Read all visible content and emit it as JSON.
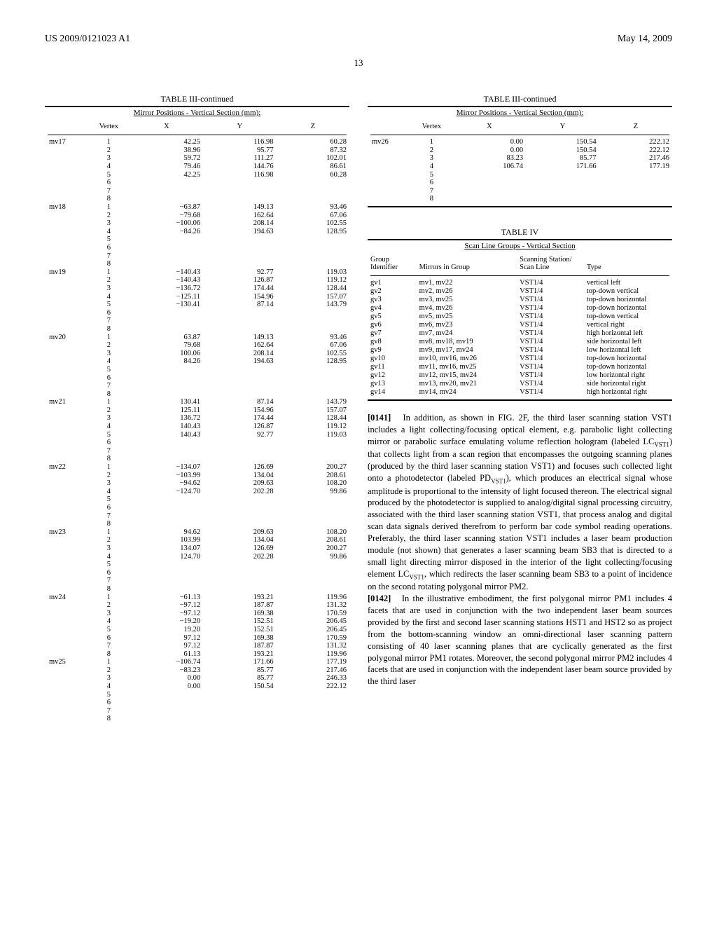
{
  "header": {
    "pub_no": "US 2009/0121023 A1",
    "date": "May 14, 2009"
  },
  "page_number": "13",
  "table3_left": {
    "title": "TABLE III-continued",
    "subtitle": "Mirror Positions - Vertical Section (mm):",
    "cols": [
      "Vertex",
      "X",
      "Y",
      "Z"
    ],
    "groups": [
      {
        "label": "mv17",
        "rows": [
          [
            "1",
            "42.25",
            "116.98",
            "60.28"
          ],
          [
            "2",
            "38.96",
            "95.77",
            "87.32"
          ],
          [
            "3",
            "59.72",
            "111.27",
            "102.01"
          ],
          [
            "4",
            "79.46",
            "144.76",
            "86.61"
          ],
          [
            "5",
            "42.25",
            "116.98",
            "60.28"
          ],
          [
            "6",
            "",
            "",
            ""
          ],
          [
            "7",
            "",
            "",
            ""
          ],
          [
            "8",
            "",
            "",
            ""
          ]
        ]
      },
      {
        "label": "mv18",
        "rows": [
          [
            "1",
            "−63.87",
            "149.13",
            "93.46"
          ],
          [
            "2",
            "−79.68",
            "162.64",
            "67.06"
          ],
          [
            "3",
            "−100.06",
            "208.14",
            "102.55"
          ],
          [
            "4",
            "−84.26",
            "194.63",
            "128.95"
          ],
          [
            "5",
            "",
            "",
            ""
          ],
          [
            "6",
            "",
            "",
            ""
          ],
          [
            "7",
            "",
            "",
            ""
          ],
          [
            "8",
            "",
            "",
            ""
          ]
        ]
      },
      {
        "label": "mv19",
        "rows": [
          [
            "1",
            "−140.43",
            "92.77",
            "119.03"
          ],
          [
            "2",
            "−140.43",
            "126.87",
            "119.12"
          ],
          [
            "3",
            "−136.72",
            "174.44",
            "128.44"
          ],
          [
            "4",
            "−125.11",
            "154.96",
            "157.07"
          ],
          [
            "5",
            "−130.41",
            "87.14",
            "143.79"
          ],
          [
            "6",
            "",
            "",
            ""
          ],
          [
            "7",
            "",
            "",
            ""
          ],
          [
            "8",
            "",
            "",
            ""
          ]
        ]
      },
      {
        "label": "mv20",
        "rows": [
          [
            "1",
            "63.87",
            "149.13",
            "93.46"
          ],
          [
            "2",
            "79.68",
            "162.64",
            "67.06"
          ],
          [
            "3",
            "100.06",
            "208.14",
            "102.55"
          ],
          [
            "4",
            "84.26",
            "194.63",
            "128.95"
          ],
          [
            "5",
            "",
            "",
            ""
          ],
          [
            "6",
            "",
            "",
            ""
          ],
          [
            "7",
            "",
            "",
            ""
          ],
          [
            "8",
            "",
            "",
            ""
          ]
        ]
      },
      {
        "label": "mv21",
        "rows": [
          [
            "1",
            "130.41",
            "87.14",
            "143.79"
          ],
          [
            "2",
            "125.11",
            "154.96",
            "157.07"
          ],
          [
            "3",
            "136.72",
            "174.44",
            "128.44"
          ],
          [
            "4",
            "140.43",
            "126.87",
            "119.12"
          ],
          [
            "5",
            "140.43",
            "92.77",
            "119.03"
          ],
          [
            "6",
            "",
            "",
            ""
          ],
          [
            "7",
            "",
            "",
            ""
          ],
          [
            "8",
            "",
            "",
            ""
          ]
        ]
      },
      {
        "label": "mv22",
        "rows": [
          [
            "1",
            "−134.07",
            "126.69",
            "200.27"
          ],
          [
            "2",
            "−103.99",
            "134.04",
            "208.61"
          ],
          [
            "3",
            "−94.62",
            "209.63",
            "108.20"
          ],
          [
            "4",
            "−124.70",
            "202.28",
            "99.86"
          ],
          [
            "5",
            "",
            "",
            ""
          ],
          [
            "6",
            "",
            "",
            ""
          ],
          [
            "7",
            "",
            "",
            ""
          ],
          [
            "8",
            "",
            "",
            ""
          ]
        ]
      },
      {
        "label": "mv23",
        "rows": [
          [
            "1",
            "94.62",
            "209.63",
            "108.20"
          ],
          [
            "2",
            "103.99",
            "134.04",
            "208.61"
          ],
          [
            "3",
            "134.07",
            "126.69",
            "200.27"
          ],
          [
            "4",
            "124.70",
            "202.28",
            "99.86"
          ],
          [
            "5",
            "",
            "",
            ""
          ],
          [
            "6",
            "",
            "",
            ""
          ],
          [
            "7",
            "",
            "",
            ""
          ],
          [
            "8",
            "",
            "",
            ""
          ]
        ]
      },
      {
        "label": "mv24",
        "rows": [
          [
            "1",
            "−61.13",
            "193.21",
            "119.96"
          ],
          [
            "2",
            "−97.12",
            "187.87",
            "131.32"
          ],
          [
            "3",
            "−97.12",
            "169.38",
            "170.59"
          ],
          [
            "4",
            "−19.20",
            "152.51",
            "206.45"
          ],
          [
            "5",
            "19.20",
            "152.51",
            "206.45"
          ],
          [
            "6",
            "97.12",
            "169.38",
            "170.59"
          ],
          [
            "7",
            "97.12",
            "187.87",
            "131.32"
          ],
          [
            "8",
            "61.13",
            "193.21",
            "119.96"
          ]
        ]
      },
      {
        "label": "mv25",
        "rows": [
          [
            "1",
            "−106.74",
            "171.66",
            "177.19"
          ],
          [
            "2",
            "−83.23",
            "85.77",
            "217.46"
          ],
          [
            "3",
            "0.00",
            "85.77",
            "246.33"
          ],
          [
            "4",
            "0.00",
            "150.54",
            "222.12"
          ],
          [
            "5",
            "",
            "",
            ""
          ],
          [
            "6",
            "",
            "",
            ""
          ],
          [
            "7",
            "",
            "",
            ""
          ],
          [
            "8",
            "",
            "",
            ""
          ]
        ]
      }
    ]
  },
  "table3_right": {
    "title": "TABLE III-continued",
    "subtitle": "Mirror Positions - Vertical Section (mm):",
    "cols": [
      "Vertex",
      "X",
      "Y",
      "Z"
    ],
    "groups": [
      {
        "label": "mv26",
        "rows": [
          [
            "1",
            "0.00",
            "150.54",
            "222.12"
          ],
          [
            "2",
            "0.00",
            "150.54",
            "222.12"
          ],
          [
            "3",
            "83.23",
            "85.77",
            "217.46"
          ],
          [
            "4",
            "106.74",
            "171.66",
            "177.19"
          ],
          [
            "5",
            "",
            "",
            ""
          ],
          [
            "6",
            "",
            "",
            ""
          ],
          [
            "7",
            "",
            "",
            ""
          ],
          [
            "8",
            "",
            "",
            ""
          ]
        ]
      }
    ]
  },
  "table4": {
    "title": "TABLE IV",
    "subtitle": "Scan Line Groups - Vertical Section",
    "cols": [
      "Group Identifier",
      "Mirrors in Group",
      "Scanning Station/ Scan Line",
      "Type"
    ],
    "rows": [
      [
        "gv1",
        "mv1, mv22",
        "VST1/4",
        "vertical left"
      ],
      [
        "gv2",
        "mv2, mv26",
        "VST1/4",
        "top-down vertical"
      ],
      [
        "gv3",
        "mv3, mv25",
        "VST1/4",
        "top-down horizontal"
      ],
      [
        "gv4",
        "mv4, mv26",
        "VST1/4",
        "top-down horizontal"
      ],
      [
        "gv5",
        "mv5, mv25",
        "VST1/4",
        "top-down vertical"
      ],
      [
        "gv6",
        "mv6, mv23",
        "VST1/4",
        "vertical right"
      ],
      [
        "gv7",
        "mv7, mv24",
        "VST1/4",
        "high horizontal left"
      ],
      [
        "gv8",
        "mv8, mv18, mv19",
        "VST1/4",
        "side horizontal left"
      ],
      [
        "gv9",
        "mv9, mv17, mv24",
        "VST1/4",
        "low horizontal left"
      ],
      [
        "gv10",
        "mv10, mv16, mv26",
        "VST1/4",
        "top-down horizontal"
      ],
      [
        "gv11",
        "mv11, mv16, mv25",
        "VST1/4",
        "top-down horizontal"
      ],
      [
        "gv12",
        "mv12, mv15, mv24",
        "VST1/4",
        "low horizontal right"
      ],
      [
        "gv13",
        "mv13, mv20, mv21",
        "VST1/4",
        "side horizontal right"
      ],
      [
        "gv14",
        "mv14, mv24",
        "VST1/4",
        "high horizontal right"
      ]
    ]
  },
  "para1_num": "[0141]",
  "para1": "In addition, as shown in FIG. 2F, the third laser scanning station VST1 includes a light collecting/focusing optical element, e.g. parabolic light collecting mirror or parabolic surface emulating volume reflection hologram (labeled LC",
  "para1b": ") that collects light from a scan region that encompasses the outgoing scanning planes (produced by the third laser scanning station VST1) and focuses such collected light onto a photodetector (labeled PD",
  "para1c": "), which produces an electrical signal whose amplitude is proportional to the intensity of light focused thereon. The electrical signal produced by the photodetector is supplied to analog/digital signal processing circuitry, associated with the third laser scanning station VST1, that process analog and digital scan data signals derived therefrom to perform bar code symbol reading operations. Preferably, the third laser scanning station VST1 includes a laser beam production module (not shown) that generates a laser scanning beam SB3 that is directed to a small light directing mirror disposed in the interior of the light collecting/focusing element LC",
  "para1d": ", which redirects the laser scanning beam SB3 to a point of incidence on the second rotating polygonal mirror PM2.",
  "para2_num": "[0142]",
  "para2": "In the illustrative embodiment, the first polygonal mirror PM1 includes 4 facets that are used in conjunction with the two independent laser beam sources provided by the first and second laser scanning stations HST1 and HST2 so as project from the bottom-scanning window an omni-directional laser scanning pattern consisting of 40 laser scanning planes that are cyclically generated as the first polygonal mirror PM1 rotates. Moreover, the second polygonal mirror PM2 includes 4 facets that are used in conjunction with the independent laser beam source provided by the third laser",
  "sub_vst": "VST1"
}
